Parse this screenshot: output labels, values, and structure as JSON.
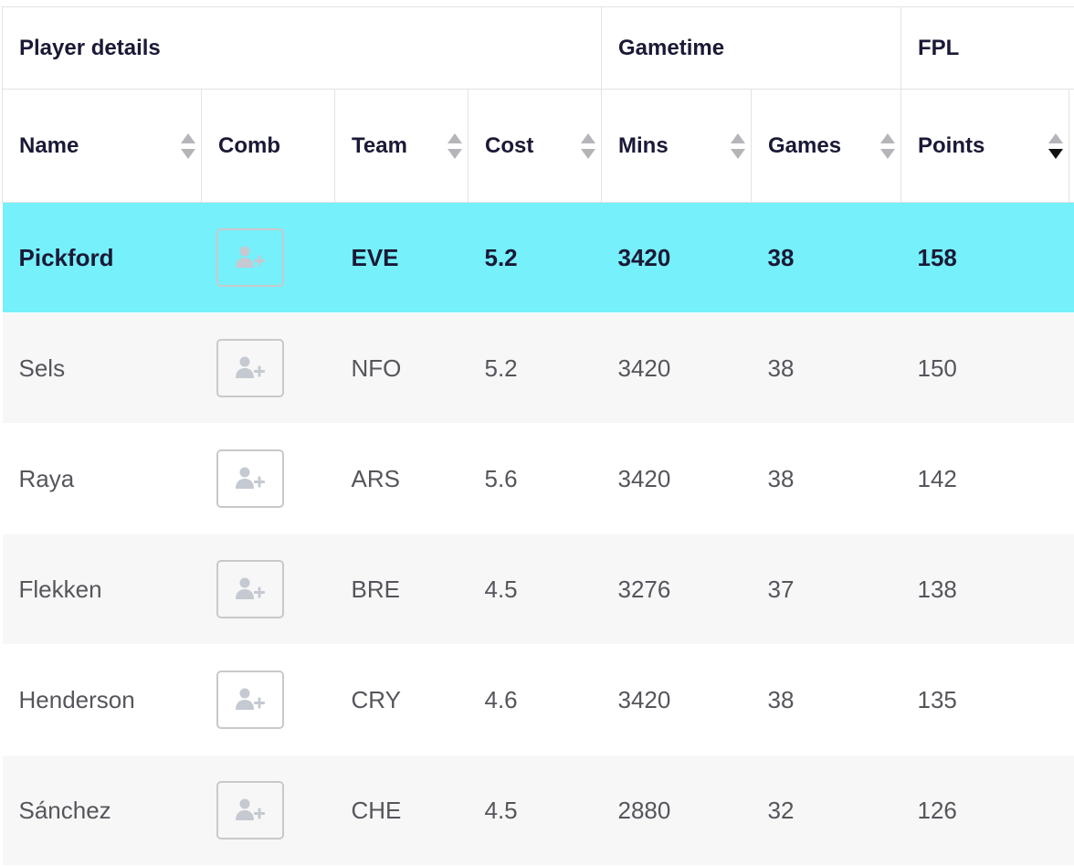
{
  "table": {
    "groups": {
      "player_details": "Player details",
      "gametime": "Gametime",
      "fpl": "FPL"
    },
    "columns": {
      "name": "Name",
      "comb": "Comb",
      "team": "Team",
      "cost": "Cost",
      "mins": "Mins",
      "games": "Games",
      "points": "Points"
    },
    "sort": {
      "active_column": "Points",
      "direction": "descending"
    },
    "rows": [
      {
        "name": "Pickford",
        "team": "EVE",
        "cost": "5.2",
        "mins": "3420",
        "games": "38",
        "points": "158",
        "highlighted": true
      },
      {
        "name": "Sels",
        "team": "NFO",
        "cost": "5.2",
        "mins": "3420",
        "games": "38",
        "points": "150",
        "highlighted": false
      },
      {
        "name": "Raya",
        "team": "ARS",
        "cost": "5.6",
        "mins": "3420",
        "games": "38",
        "points": "142",
        "highlighted": false
      },
      {
        "name": "Flekken",
        "team": "BRE",
        "cost": "4.5",
        "mins": "3276",
        "games": "37",
        "points": "138",
        "highlighted": false
      },
      {
        "name": "Henderson",
        "team": "CRY",
        "cost": "4.6",
        "mins": "3420",
        "games": "38",
        "points": "135",
        "highlighted": false
      },
      {
        "name": "Sánchez",
        "team": "CHE",
        "cost": "4.5",
        "mins": "2880",
        "games": "32",
        "points": "126",
        "highlighted": false
      }
    ]
  },
  "icons": {
    "add_to_comparison": "add-user-icon",
    "sort": "sort-arrows-icon"
  },
  "colors": {
    "highlight_row": "#76f0fa",
    "alt_row": "#f7f7f7",
    "header_text": "#1a1936",
    "body_text": "#55555c"
  }
}
